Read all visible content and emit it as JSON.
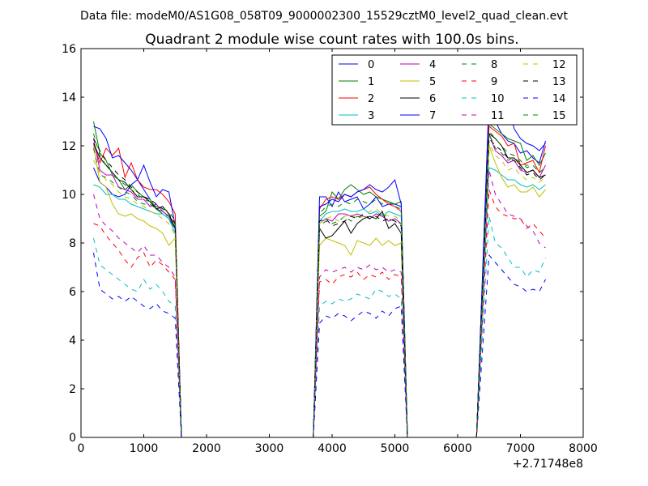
{
  "chart_data": {
    "type": "line",
    "suptitle": "Data file: modeM0/AS1G08_058T09_9000002300_15529cztM0_level2_quad_clean.evt",
    "title": "Quadrant 2 module wise count rates with 100.0s bins.",
    "xlabel": "",
    "ylabel": "",
    "x_offset_label": "+2.71748e8",
    "xlim": [
      0,
      8000
    ],
    "ylim": [
      0,
      16
    ],
    "x_ticks": [
      0,
      1000,
      2000,
      3000,
      4000,
      5000,
      6000,
      7000,
      8000
    ],
    "x_tick_labels": [
      "0",
      "1000",
      "2000",
      "3000",
      "4000",
      "5000",
      "6000",
      "7000",
      "8000"
    ],
    "y_ticks": [
      0,
      2,
      4,
      6,
      8,
      10,
      12,
      14,
      16
    ],
    "y_tick_labels": [
      "0",
      "2",
      "4",
      "6",
      "8",
      "10",
      "12",
      "14",
      "16"
    ],
    "grid": false,
    "legend_position": "top-right",
    "legend_columns": 4,
    "segments": {
      "seg1_start": 200,
      "seg1_end": 1500,
      "drop1": 1600,
      "seg2_start": 3700,
      "seg2_data_start": 3800,
      "seg2_end": 5100,
      "drop2": 5200,
      "seg3_start": 6300,
      "seg3_data_start": 6500,
      "seg3_end": 7400
    },
    "series": [
      {
        "name": "0",
        "color": "#0000ff",
        "dash": "solid",
        "seg1": [
          11.1,
          10.5,
          10.3,
          10.0,
          9.9,
          10.0,
          10.4,
          10.6,
          10.2,
          9.8,
          9.4,
          9.2,
          9.0,
          8.6
        ],
        "seg2": [
          9.9,
          9.9,
          9.5,
          10.1,
          9.7,
          9.8,
          9.9,
          9.4,
          9.6,
          9.9,
          9.5,
          9.6,
          9.6,
          9.5
        ],
        "seg3": [
          13.9,
          13.0,
          12.5,
          12.2,
          12.1,
          11.7,
          11.8,
          11.5,
          11.3,
          12.2
        ]
      },
      {
        "name": "1",
        "color": "#008000",
        "dash": "solid",
        "seg1": [
          13.0,
          11.7,
          11.4,
          10.8,
          10.6,
          10.2,
          10.4,
          10.1,
          9.9,
          9.8,
          9.4,
          9.3,
          9.1,
          8.8
        ],
        "seg2": [
          9.1,
          9.3,
          10.1,
          9.8,
          10.2,
          10.4,
          10.2,
          10.0,
          10.1,
          9.9,
          9.8,
          9.7,
          9.6,
          9.7
        ],
        "seg3": [
          12.9,
          12.7,
          12.5,
          12.3,
          12.2,
          12.1,
          11.4,
          11.6,
          11.2,
          11.7
        ]
      },
      {
        "name": "2",
        "color": "#ff0000",
        "dash": "solid",
        "seg1": [
          12.1,
          11.3,
          11.9,
          11.6,
          11.9,
          10.7,
          11.3,
          10.6,
          10.3,
          10.2,
          10.2,
          10.0,
          9.7,
          9.2
        ],
        "seg2": [
          9.4,
          9.8,
          9.9,
          9.8,
          10.0,
          9.9,
          10.1,
          10.2,
          10.3,
          10.0,
          9.8,
          9.6,
          9.5,
          9.3
        ],
        "seg3": [
          12.8,
          12.6,
          12.4,
          12.0,
          12.1,
          11.2,
          11.3,
          11.4,
          10.9,
          12.0
        ]
      },
      {
        "name": "3",
        "color": "#00bfbf",
        "dash": "solid",
        "seg1": [
          10.4,
          10.3,
          10.0,
          10.0,
          9.8,
          9.8,
          9.6,
          9.5,
          9.4,
          9.3,
          9.2,
          9.2,
          9.0,
          8.4
        ],
        "seg2": [
          8.9,
          9.2,
          9.3,
          9.3,
          9.4,
          9.3,
          9.3,
          9.4,
          9.2,
          9.3,
          9.1,
          9.3,
          9.2,
          9.1
        ],
        "seg3": [
          11.1,
          11.0,
          10.8,
          10.6,
          10.6,
          10.4,
          10.3,
          10.4,
          10.2,
          10.4
        ]
      },
      {
        "name": "4",
        "color": "#bf00bf",
        "dash": "solid",
        "seg1": [
          12.3,
          11.0,
          10.8,
          10.8,
          10.3,
          10.2,
          10.1,
          9.8,
          9.8,
          9.5,
          9.6,
          9.3,
          9.1,
          8.6
        ],
        "seg2": [
          8.8,
          9.0,
          8.9,
          9.2,
          9.2,
          9.1,
          9.2,
          9.1,
          9.0,
          9.2,
          9.1,
          8.9,
          9.0,
          8.8
        ],
        "seg3": [
          12.5,
          11.8,
          11.6,
          11.3,
          11.4,
          11.0,
          10.9,
          11.0,
          10.7,
          11.2
        ]
      },
      {
        "name": "5",
        "color": "#bfbf00",
        "dash": "solid",
        "seg1": [
          12.0,
          10.5,
          10.3,
          9.6,
          9.2,
          9.1,
          9.2,
          9.0,
          8.9,
          8.7,
          8.6,
          8.4,
          7.9,
          8.2
        ],
        "seg2": [
          7.9,
          8.2,
          8.1,
          8.0,
          7.9,
          7.5,
          8.1,
          8.0,
          7.9,
          8.2,
          7.9,
          8.1,
          7.9,
          8.0
        ],
        "seg3": [
          12.0,
          11.3,
          10.7,
          10.3,
          10.4,
          10.1,
          10.1,
          10.3,
          9.9,
          10.2
        ]
      },
      {
        "name": "6",
        "color": "#000000",
        "dash": "solid",
        "seg1": [
          12.1,
          11.5,
          11.2,
          10.9,
          10.6,
          10.5,
          10.2,
          9.9,
          9.9,
          9.7,
          9.4,
          9.5,
          9.2,
          8.6
        ],
        "seg2": [
          8.6,
          8.2,
          8.3,
          8.6,
          8.9,
          8.4,
          8.8,
          9.0,
          9.1,
          9.0,
          9.3,
          8.6,
          8.8,
          8.4
        ],
        "seg3": [
          12.5,
          12.3,
          12.0,
          11.5,
          11.5,
          11.2,
          10.9,
          11.0,
          10.7,
          10.8
        ]
      },
      {
        "name": "7",
        "color": "#0000ff",
        "dash": "solid",
        "seg1": [
          12.8,
          12.7,
          12.3,
          11.5,
          11.6,
          11.3,
          11.0,
          10.6,
          11.2,
          10.5,
          9.9,
          10.2,
          10.1,
          8.7
        ],
        "seg2": [
          9.5,
          9.6,
          9.8,
          9.7,
          10.0,
          9.9,
          10.1,
          10.2,
          10.4,
          10.2,
          10.1,
          10.3,
          10.6,
          9.6
        ],
        "seg3": [
          14.0,
          12.9,
          13.0,
          13.8,
          12.7,
          12.3,
          12.1,
          12.0,
          11.8,
          12.1
        ]
      },
      {
        "name": "8",
        "color": "#008000",
        "dash": "dashed",
        "seg1": [
          11.9,
          10.8,
          10.7,
          10.5,
          10.3,
          10.1,
          10.0,
          9.7,
          9.6,
          9.6,
          9.4,
          9.2,
          9.1,
          8.5
        ],
        "seg2": [
          8.7,
          8.9,
          8.8,
          8.9,
          9.1,
          8.9,
          9.1,
          9.0,
          9.1,
          9.0,
          9.2,
          9.0,
          8.9,
          8.8
        ],
        "seg3": [
          12.5,
          11.9,
          11.7,
          11.4,
          11.5,
          11.3,
          11.2,
          11.2,
          10.9,
          11.1
        ]
      },
      {
        "name": "9",
        "color": "#ff0000",
        "dash": "dashed",
        "seg1": [
          8.8,
          8.7,
          8.3,
          8.0,
          7.7,
          7.3,
          7.0,
          7.4,
          7.6,
          7.0,
          7.3,
          7.1,
          6.8,
          6.5
        ],
        "seg2": [
          6.4,
          6.5,
          6.3,
          6.6,
          6.7,
          6.6,
          6.8,
          6.5,
          6.7,
          6.6,
          6.8,
          6.5,
          6.7,
          6.6
        ],
        "seg3": [
          10.2,
          9.5,
          9.2,
          9.1,
          9.0,
          9.0,
          8.6,
          8.8,
          8.5,
          8.2
        ]
      },
      {
        "name": "10",
        "color": "#00bfbf",
        "dash": "dashed",
        "seg1": [
          8.2,
          7.1,
          6.9,
          6.7,
          6.5,
          6.3,
          6.1,
          6.0,
          6.5,
          6.1,
          6.3,
          6.0,
          5.6,
          5.4
        ],
        "seg2": [
          5.4,
          5.6,
          5.5,
          5.7,
          5.6,
          5.7,
          5.9,
          5.8,
          5.7,
          6.1,
          6.0,
          5.8,
          5.9,
          5.7
        ],
        "seg3": [
          9.1,
          8.0,
          7.8,
          7.4,
          7.0,
          7.0,
          6.6,
          6.9,
          6.8,
          7.4
        ]
      },
      {
        "name": "11",
        "color": "#bf00bf",
        "dash": "dashed",
        "seg1": [
          10.0,
          9.0,
          8.7,
          8.5,
          8.2,
          8.0,
          7.8,
          7.6,
          7.9,
          7.5,
          7.5,
          7.2,
          7.0,
          6.6
        ],
        "seg2": [
          6.6,
          6.9,
          6.8,
          6.9,
          7.0,
          6.8,
          7.0,
          6.9,
          7.1,
          6.9,
          7.0,
          6.8,
          6.9,
          6.8
        ],
        "seg3": [
          11.0,
          10.0,
          9.6,
          9.2,
          9.1,
          9.0,
          8.7,
          8.5,
          8.0,
          7.8
        ]
      },
      {
        "name": "12",
        "color": "#bfbf00",
        "dash": "dashed",
        "seg1": [
          11.4,
          10.9,
          10.6,
          10.4,
          10.1,
          9.9,
          9.8,
          9.6,
          9.5,
          9.3,
          9.2,
          9.0,
          8.8,
          8.3
        ],
        "seg2": [
          8.8,
          9.0,
          9.1,
          8.9,
          9.1,
          9.2,
          9.0,
          9.1,
          9.3,
          9.4,
          9.2,
          9.1,
          9.1,
          8.9
        ],
        "seg3": [
          12.1,
          11.6,
          11.4,
          11.0,
          11.1,
          10.8,
          10.6,
          10.7,
          10.5,
          10.7
        ]
      },
      {
        "name": "13",
        "color": "#000000",
        "dash": "dashed",
        "seg1": [
          12.3,
          11.8,
          11.4,
          11.1,
          10.8,
          10.6,
          10.3,
          10.1,
          9.9,
          9.8,
          9.6,
          9.4,
          9.2,
          8.8
        ],
        "seg2": [
          8.9,
          9.0,
          8.7,
          8.8,
          8.9,
          9.1,
          9.0,
          9.2,
          9.0,
          9.1,
          8.9,
          9.0,
          8.9,
          8.7
        ],
        "seg3": [
          12.3,
          12.0,
          11.8,
          11.5,
          11.4,
          11.1,
          10.8,
          10.9,
          10.6,
          10.8
        ]
      },
      {
        "name": "14",
        "color": "#0000ff",
        "dash": "dashed",
        "seg1": [
          7.6,
          6.1,
          5.9,
          5.7,
          5.8,
          5.6,
          5.8,
          5.6,
          5.4,
          5.3,
          5.5,
          5.2,
          5.1,
          4.9
        ],
        "seg2": [
          4.7,
          5.0,
          4.9,
          5.1,
          5.0,
          4.8,
          5.0,
          5.2,
          5.1,
          4.9,
          5.2,
          5.0,
          5.3,
          5.4
        ],
        "seg3": [
          7.5,
          7.2,
          6.9,
          6.6,
          6.3,
          6.2,
          6.0,
          6.1,
          6.0,
          6.5
        ]
      },
      {
        "name": "15",
        "color": "#008000",
        "dash": "dashed",
        "seg1": [
          12.5,
          11.6,
          11.2,
          10.9,
          10.6,
          10.4,
          10.2,
          10.0,
          9.8,
          9.7,
          9.5,
          9.4,
          9.3,
          8.9
        ],
        "seg2": [
          9.2,
          9.5,
          9.6,
          9.5,
          9.7,
          9.6,
          9.8,
          9.7,
          9.6,
          9.8,
          9.6,
          9.7,
          9.5,
          9.4
        ],
        "seg3": [
          12.6,
          12.3,
          12.0,
          11.7,
          11.6,
          11.4,
          11.1,
          11.2,
          10.9,
          11.1
        ]
      }
    ]
  }
}
